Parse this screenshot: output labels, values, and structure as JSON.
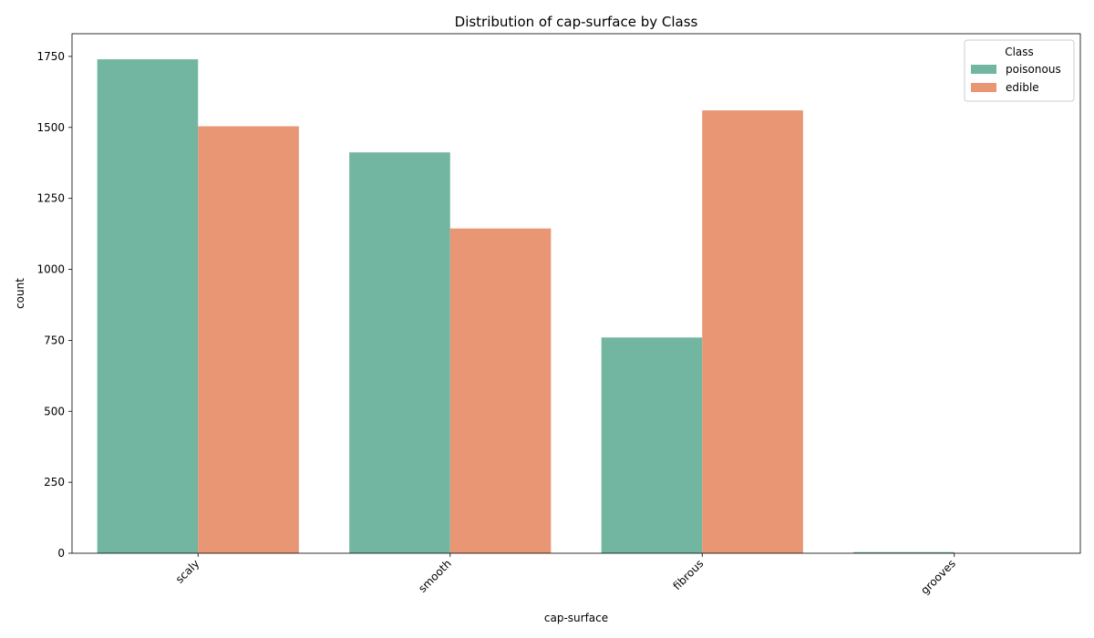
{
  "chart_data": {
    "type": "bar",
    "title": "Distribution of cap-surface by Class",
    "xlabel": "cap-surface",
    "ylabel": "count",
    "categories": [
      "scaly",
      "smooth",
      "fibrous",
      "grooves"
    ],
    "series": [
      {
        "name": "poisonous",
        "color": "#72b6a1",
        "values": [
          1740,
          1412,
          760,
          4
        ]
      },
      {
        "name": "edible",
        "color": "#e99675",
        "values": [
          1504,
          1144,
          1560,
          0
        ]
      }
    ],
    "ylim": [
      0,
      1830
    ],
    "yticks": [
      0,
      250,
      500,
      750,
      1000,
      1250,
      1500,
      1750
    ],
    "grid": false,
    "legend": {
      "title": "Class",
      "position": "top-right"
    },
    "xtick_rotation_deg": 45
  }
}
